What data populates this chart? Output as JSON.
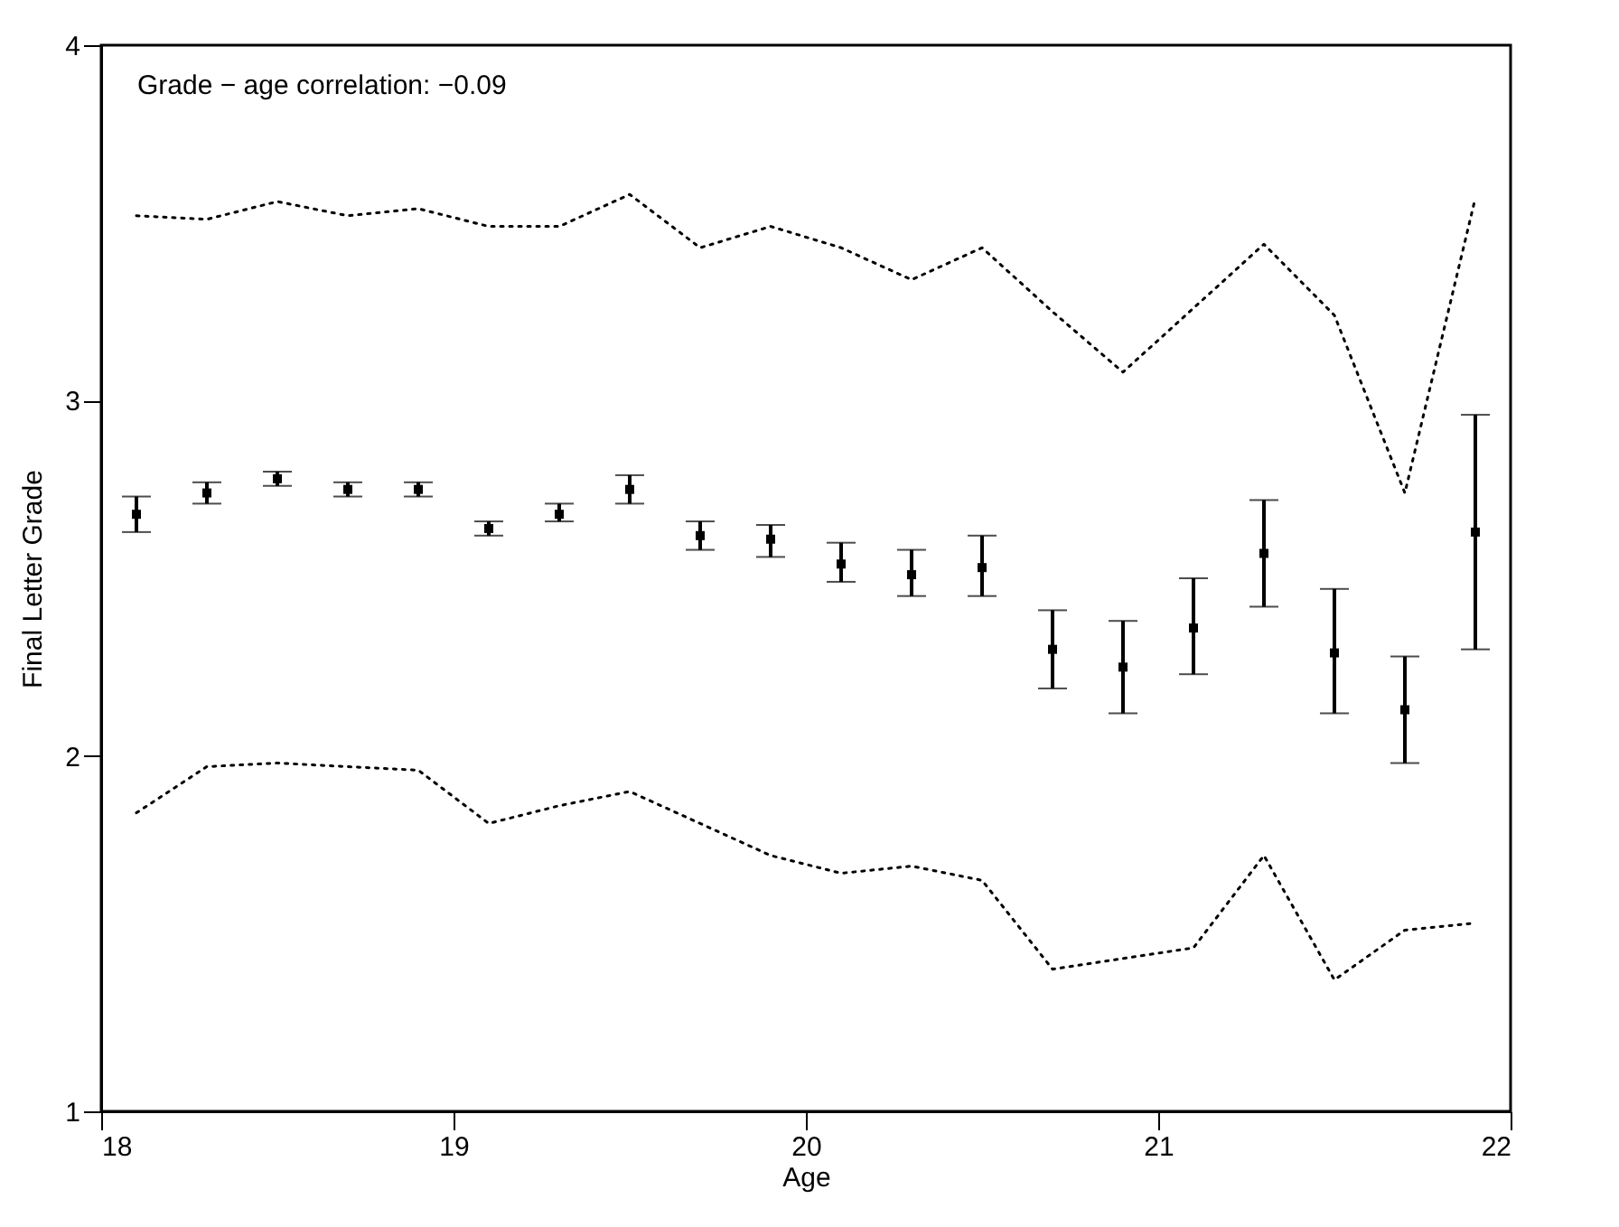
{
  "chart_data": {
    "type": "scatter",
    "xlabel": "Age",
    "ylabel": "Final Letter Grade",
    "annotations": [
      "Grade − age correlation: −0.09"
    ],
    "x": [
      18.1,
      18.3,
      18.5,
      18.7,
      18.9,
      19.1,
      19.3,
      19.5,
      19.7,
      19.9,
      20.1,
      20.3,
      20.5,
      20.7,
      20.9,
      21.1,
      21.3,
      21.5,
      21.7,
      21.9
    ],
    "series": [
      {
        "color": "#000000",
        "marker": "square",
        "values": [
          2.68,
          2.74,
          2.78,
          2.75,
          2.75,
          2.64,
          2.68,
          2.75,
          2.62,
          2.61,
          2.54,
          2.51,
          2.53,
          2.3,
          2.25,
          2.36,
          2.57,
          2.29,
          2.13,
          2.63
        ],
        "errors": [
          [
            2.63,
            2.73
          ],
          [
            2.71,
            2.77
          ],
          [
            2.76,
            2.8
          ],
          [
            2.73,
            2.77
          ],
          [
            2.73,
            2.77
          ],
          [
            2.62,
            2.66
          ],
          [
            2.66,
            2.71
          ],
          [
            2.71,
            2.79
          ],
          [
            2.58,
            2.66
          ],
          [
            2.56,
            2.65
          ],
          [
            2.49,
            2.6
          ],
          [
            2.45,
            2.58
          ],
          [
            2.45,
            2.62
          ],
          [
            2.19,
            2.41
          ],
          [
            2.12,
            2.38
          ],
          [
            2.23,
            2.5
          ],
          [
            2.42,
            2.72
          ],
          [
            2.12,
            2.47
          ],
          [
            1.98,
            2.28
          ],
          [
            2.3,
            2.96
          ]
        ]
      },
      {
        "type": "line",
        "color": "#000000",
        "line_style": "dotted",
        "values": [
          3.52,
          3.51,
          3.56,
          3.52,
          3.54,
          3.49,
          3.49,
          3.58,
          3.43,
          3.49,
          3.43,
          3.34,
          3.43,
          3.25,
          3.08,
          3.26,
          3.44,
          3.24,
          2.74,
          3.57
        ]
      },
      {
        "type": "line",
        "color": "#000000",
        "line_style": "dotted",
        "values": [
          1.84,
          1.97,
          1.98,
          1.97,
          1.96,
          1.81,
          1.86,
          1.9,
          1.81,
          1.72,
          1.67,
          1.69,
          1.65,
          1.4,
          1.43,
          1.46,
          1.72,
          1.37,
          1.51,
          1.53
        ]
      }
    ],
    "xlim": [
      18,
      22
    ],
    "xticks": [
      18,
      19,
      20,
      21,
      22
    ],
    "ylim": [
      1,
      4
    ],
    "yticks": [
      1,
      2,
      3,
      4
    ],
    "grid": false
  }
}
